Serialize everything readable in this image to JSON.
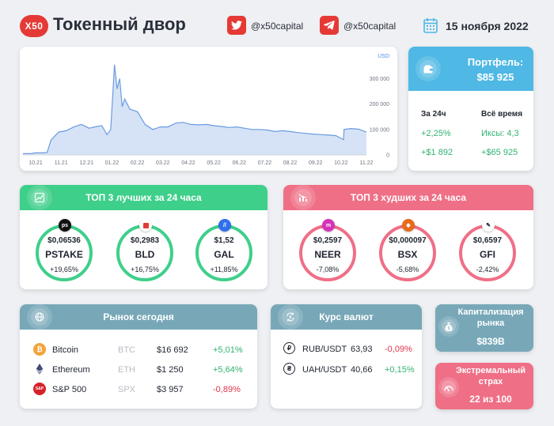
{
  "brand": {
    "logo_text": "X50",
    "title": "Токенный двор"
  },
  "social": {
    "twitter_handle": "@x50capital",
    "telegram_handle": "@x50capital"
  },
  "date": "15 ноября 2022",
  "colors": {
    "accent_red": "#e53935",
    "blue": "#4fb8e4",
    "green": "#3ecf8a",
    "pink": "#ef6f86",
    "teal": "#78a8b8",
    "positive": "#2fb36e",
    "negative": "#e0344e"
  },
  "chart_data": {
    "type": "area",
    "ylabel": "USD",
    "x_ticks": [
      "10.21",
      "11.21",
      "12.21",
      "01.22",
      "02.22",
      "03.22",
      "04.22",
      "05.22",
      "06.22",
      "07.22",
      "08.22",
      "09.22",
      "10.22",
      "11.22"
    ],
    "y_ticks": [
      "300 000",
      "200 000",
      "100 000",
      "0"
    ],
    "ylim": [
      0,
      370000
    ],
    "grid": false,
    "series": [
      {
        "x": [
          0,
          0.3,
          0.5,
          0.8,
          0.95,
          1.1,
          1.4,
          1.7,
          2.0,
          2.3,
          2.6,
          2.9,
          3.1,
          3.3,
          3.45,
          3.6,
          3.7,
          3.8,
          3.9,
          4.0,
          4.2,
          4.5,
          4.8,
          5.1,
          5.4,
          5.7,
          6.0,
          6.3,
          6.6,
          6.9,
          7.2,
          7.5,
          7.8,
          8.1,
          8.4,
          8.7,
          9.0,
          9.3,
          9.6,
          9.9,
          10.2,
          10.5,
          10.8,
          11.1,
          11.4,
          11.7,
          12.0,
          12.3,
          12.6,
          12.62,
          12.9,
          13.2,
          13.5
        ],
        "values": [
          5000,
          5000,
          8000,
          8000,
          10000,
          58000,
          90000,
          95000,
          110000,
          120000,
          105000,
          112000,
          115000,
          80000,
          100000,
          355000,
          260000,
          300000,
          190000,
          220000,
          180000,
          170000,
          120000,
          100000,
          110000,
          110000,
          125000,
          128000,
          120000,
          118000,
          120000,
          115000,
          112000,
          108000,
          110000,
          105000,
          100000,
          100000,
          98000,
          92000,
          95000,
          92000,
          88000,
          85000,
          82000,
          80000,
          78000,
          76000,
          60000,
          100000,
          104000,
          101000,
          90000
        ]
      }
    ]
  },
  "portfolio": {
    "title": "Портфель:",
    "value": "$85 925",
    "col_24h": "За 24ч",
    "col_all": "Всё время",
    "v1_24h": "+2,25%",
    "v2_24h": "+$1 892",
    "v1_all": "Иксы: 4,3",
    "v2_all": "+$65 925"
  },
  "top_best": {
    "title": "ТОП 3 лучших за 24 часа",
    "items": [
      {
        "price": "$0,06536",
        "ticker": "PSTAKE",
        "change": "+19,65%"
      },
      {
        "price": "$0,2983",
        "ticker": "BLD",
        "change": "+16,75%"
      },
      {
        "price": "$1,52",
        "ticker": "GAL",
        "change": "+11,85%"
      }
    ]
  },
  "top_worst": {
    "title": "ТОП 3 худших за 24 часа",
    "items": [
      {
        "price": "$0,2597",
        "ticker": "NEER",
        "change": "-7,08%"
      },
      {
        "price": "$0,000097",
        "ticker": "BSX",
        "change": "-5,68%"
      },
      {
        "price": "$0,6597",
        "ticker": "GFI",
        "change": "-2,42%"
      }
    ]
  },
  "market": {
    "title": "Рынок сегодня",
    "rows": [
      {
        "name": "Bitcoin",
        "ticker": "BTC",
        "price": "$16 692",
        "change": "+5,01%"
      },
      {
        "name": "Ethereum",
        "ticker": "ETH",
        "price": "$1 250",
        "change": "+5,64%"
      },
      {
        "name": "S&P 500",
        "ticker": "SPX",
        "price": "$3 957",
        "change": "-0,89%"
      }
    ]
  },
  "fx": {
    "title": "Курс валют",
    "rows": [
      {
        "pair": "RUB/USDT",
        "rate": "63,93",
        "change": "-0,09%"
      },
      {
        "pair": "UAH/USDT",
        "rate": "40,66",
        "change": "+0,15%"
      }
    ]
  },
  "cap": {
    "title_line1": "Капитализация",
    "title_line2": "рынка",
    "value": "$839B"
  },
  "fear": {
    "title_line1": "Экстремальный",
    "title_line2": "страх",
    "value": "22 из 100"
  }
}
